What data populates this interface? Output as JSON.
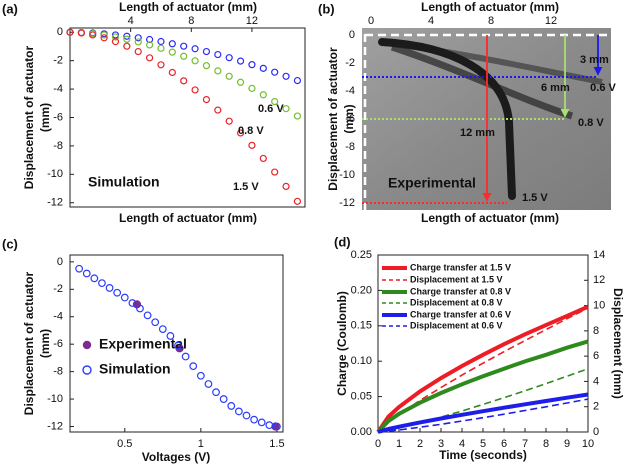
{
  "chart_data": [
    {
      "type": "line",
      "label": "(a)",
      "x_label": "Length of actuator (mm)",
      "x_axis": "top",
      "y_label": [
        "Displacement of actuator",
        "(mm)"
      ],
      "xlim": [
        0,
        15.5
      ],
      "xticks": [
        4,
        8,
        12
      ],
      "ylim": [
        -12.3,
        0.3
      ],
      "yticks": [
        0,
        -2,
        -4,
        -6,
        -8,
        -10,
        -12
      ],
      "x": [
        0,
        0.75,
        1.5,
        2.25,
        3,
        3.75,
        4.5,
        5.25,
        6,
        6.75,
        7.5,
        8.25,
        9,
        9.75,
        10.5,
        11.25,
        12,
        12.75,
        13.5,
        14.25,
        15
      ],
      "marker": "circle",
      "series": [
        {
          "name": "0.6 V",
          "color": "#2b2bff",
          "values": [
            0,
            -0.02,
            -0.05,
            -0.11,
            -0.19,
            -0.28,
            -0.39,
            -0.51,
            -0.65,
            -0.81,
            -0.98,
            -1.16,
            -1.36,
            -1.57,
            -1.79,
            -2.03,
            -2.28,
            -2.54,
            -2.81,
            -3.1,
            -3.4
          ]
        },
        {
          "name": "0.8 V",
          "color": "#72c02c",
          "values": [
            0,
            -0.03,
            -0.09,
            -0.19,
            -0.33,
            -0.49,
            -0.68,
            -0.89,
            -1.13,
            -1.4,
            -1.69,
            -2.01,
            -2.35,
            -2.72,
            -3.1,
            -3.52,
            -3.95,
            -4.4,
            -4.88,
            -5.38,
            -5.9
          ]
        },
        {
          "name": "1.5 V",
          "color": "#e8242a",
          "values": [
            0,
            -0.05,
            -0.19,
            -0.39,
            -0.66,
            -0.98,
            -1.36,
            -1.8,
            -2.29,
            -2.83,
            -3.42,
            -4.06,
            -4.74,
            -5.48,
            -6.26,
            -7.09,
            -7.96,
            -8.88,
            -9.84,
            -10.85,
            -11.9
          ]
        }
      ],
      "annotations": [
        {
          "text": "0.6 V",
          "color": "#2b2bff"
        },
        {
          "text": "0.8 V",
          "color": "#72c02c"
        },
        {
          "text": "1.5 V",
          "color": "#e8242a"
        },
        {
          "text": "Simulation",
          "color": "#2b2bff"
        }
      ]
    },
    {
      "type": "image",
      "label": "(b)",
      "x_label": "Length of actuator (mm)",
      "x_axis": "top",
      "y_label": [
        "Displacement of actuator",
        "(mm)"
      ],
      "xlim": [
        -0.6,
        16
      ],
      "xticks": [
        0,
        4,
        8,
        12
      ],
      "ylim": [
        -12.5,
        0.5
      ],
      "yticks": [
        0,
        -2,
        -4,
        -6,
        -8,
        -10,
        -12
      ],
      "markers": [
        {
          "label": "0.6 V",
          "arrow_label": "3 mm",
          "value": -3,
          "color": "#1a1aee"
        },
        {
          "label": "0.8 V",
          "arrow_label": "6 mm",
          "value": -6,
          "color": "#a8e070"
        },
        {
          "label": "1.5 V",
          "arrow_label": "12 mm",
          "value": -12,
          "color": "#ff2a2a"
        }
      ],
      "annotations": [
        {
          "text": "Experimental",
          "color": "#2020e0"
        }
      ]
    },
    {
      "type": "scatter",
      "label": "(c)",
      "x_label": "Voltages (V)",
      "x_axis": "bottom",
      "y_label": [
        "Displacement of actuator",
        "(mm)"
      ],
      "xlim": [
        0.14,
        1.54
      ],
      "xticks": [
        0.5,
        1,
        1.5
      ],
      "ylim": [
        -12.4,
        0.5
      ],
      "yticks": [
        0,
        -2,
        -4,
        -6,
        -8,
        -10,
        -12
      ],
      "legend": "lower left",
      "series": [
        {
          "name": "Experimental",
          "color": "#7b2c8f",
          "filled": true,
          "x": [
            0.58,
            0.86,
            1.49
          ],
          "values": [
            -3.1,
            -6.3,
            -12.0
          ]
        },
        {
          "name": "Simulation",
          "color": "#2a3cff",
          "filled": false,
          "x": [
            0.2,
            0.25,
            0.3,
            0.35,
            0.4,
            0.45,
            0.5,
            0.55,
            0.6,
            0.65,
            0.7,
            0.75,
            0.8,
            0.85,
            0.9,
            0.95,
            1.0,
            1.05,
            1.1,
            1.15,
            1.2,
            1.25,
            1.3,
            1.35,
            1.4,
            1.45,
            1.5
          ],
          "values": [
            -0.5,
            -0.85,
            -1.2,
            -1.55,
            -1.9,
            -2.25,
            -2.6,
            -3.0,
            -3.4,
            -3.9,
            -4.4,
            -4.9,
            -5.4,
            -6.1,
            -6.9,
            -7.6,
            -8.3,
            -8.9,
            -9.5,
            -10.0,
            -10.5,
            -10.9,
            -11.2,
            -11.5,
            -11.7,
            -11.9,
            -12.0
          ]
        }
      ]
    },
    {
      "type": "line",
      "label": "(d)",
      "x_label": "Time (seconds)",
      "x_axis": "bottom",
      "y_label": [
        "Charge (Coulomb)"
      ],
      "y2_label": [
        "Displacement (mm)"
      ],
      "xlim": [
        0,
        10
      ],
      "xticks": [
        0,
        1,
        2,
        3,
        4,
        5,
        6,
        7,
        8,
        9,
        10
      ],
      "ylim": [
        0,
        0.25
      ],
      "yticks": [
        {
          "value": 0,
          "label": "0.00"
        },
        0.05,
        {
          "value": 0.1,
          "label": "0.10"
        },
        0.15,
        {
          "value": 0.2,
          "label": "0.20"
        },
        0.25
      ],
      "y2lim": [
        0,
        14
      ],
      "y2ticks": [
        0,
        2,
        4,
        6,
        8,
        10,
        12,
        14
      ],
      "legend": "upper left",
      "x": [
        0,
        0.5,
        1,
        2,
        3,
        4,
        5,
        6,
        7,
        8,
        9,
        10
      ],
      "series": [
        {
          "name": "Charge transfer at 1.5 V",
          "color": "#ee1c24",
          "style": "solid",
          "values": [
            0,
            0.0217,
            0.0353,
            0.0573,
            0.0762,
            0.0932,
            0.109,
            0.124,
            0.138,
            0.151,
            0.164,
            0.177
          ]
        },
        {
          "name": "Displacement at 1.5 V",
          "color": "#ee1c24",
          "style": "dashed",
          "axis": "y2",
          "values": [
            0,
            0.77,
            1.38,
            2.5,
            3.52,
            4.5,
            5.44,
            6.35,
            7.23,
            8.1,
            8.96,
            9.8
          ]
        },
        {
          "name": "Charge transfer at 0.8 V",
          "color": "#2f8a1e",
          "style": "solid",
          "values": [
            0,
            0.0157,
            0.0255,
            0.0414,
            0.0551,
            0.0674,
            0.0788,
            0.0894,
            0.0997,
            0.109,
            0.119,
            0.128
          ]
        },
        {
          "name": "Displacement at 0.8 V",
          "color": "#2f8a1e",
          "style": "dashed",
          "axis": "y2",
          "values": [
            0,
            0.14,
            0.32,
            0.72,
            1.18,
            1.66,
            2.18,
            2.71,
            3.26,
            3.83,
            4.41,
            5.0
          ]
        },
        {
          "name": "Charge transfer at 0.6 V",
          "color": "#1e1eea",
          "style": "solid",
          "values": [
            0,
            0.0042,
            0.0075,
            0.0135,
            0.019,
            0.0243,
            0.0294,
            0.0343,
            0.0391,
            0.0438,
            0.0485,
            0.053
          ]
        },
        {
          "name": "Displacement at 0.6 V",
          "color": "#1e1eea",
          "style": "dashed",
          "axis": "y2",
          "values": [
            0,
            0.07,
            0.16,
            0.38,
            0.61,
            0.87,
            1.13,
            1.41,
            1.7,
            1.99,
            2.29,
            2.6
          ]
        }
      ]
    }
  ]
}
